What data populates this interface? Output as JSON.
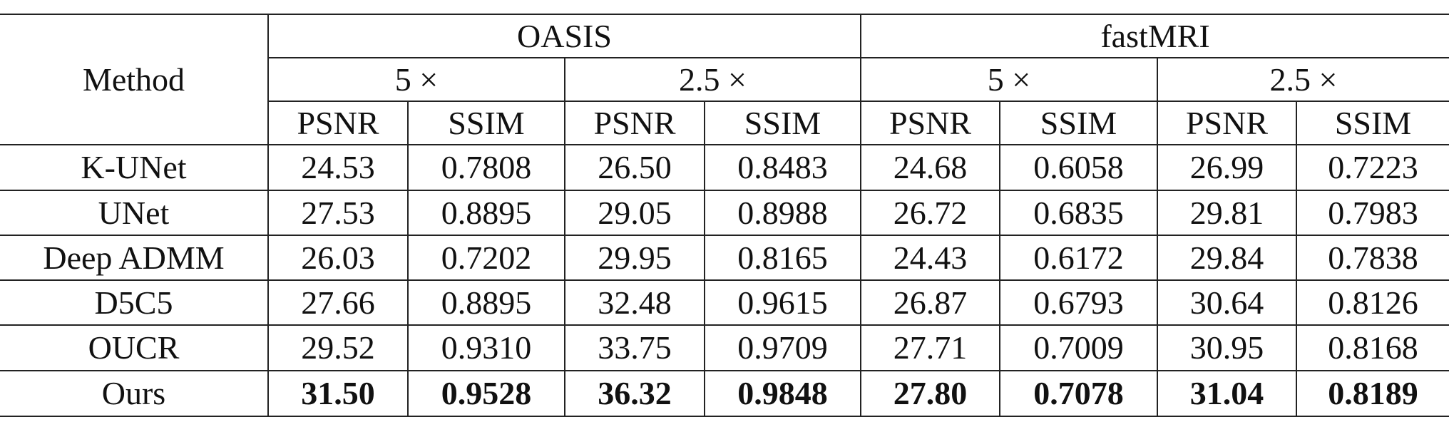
{
  "header": {
    "method": "Method",
    "datasets": [
      "OASIS",
      "fastMRI"
    ],
    "rates": [
      "5 ×",
      "2.5 ×",
      "5 ×",
      "2.5 ×"
    ],
    "metrics": [
      "PSNR",
      "SSIM",
      "PSNR",
      "SSIM",
      "PSNR",
      "SSIM",
      "PSNR",
      "SSIM"
    ]
  },
  "rows": [
    [
      "K-UNet",
      "24.53",
      "0.7808",
      "26.50",
      "0.8483",
      "24.68",
      "0.6058",
      "26.99",
      "0.7223"
    ],
    [
      "UNet",
      "27.53",
      "0.8895",
      "29.05",
      "0.8988",
      "26.72",
      "0.6835",
      "29.81",
      "0.7983"
    ],
    [
      "Deep ADMM",
      "26.03",
      "0.7202",
      "29.95",
      "0.8165",
      "24.43",
      "0.6172",
      "29.84",
      "0.7838"
    ],
    [
      "D5C5",
      "27.66",
      "0.8895",
      "32.48",
      "0.9615",
      "26.87",
      "0.6793",
      "30.64",
      "0.8126"
    ],
    [
      "OUCR",
      "29.52",
      "0.9310",
      "33.75",
      "0.9709",
      "27.71",
      "0.7009",
      "30.95",
      "0.8168"
    ],
    [
      "Ours",
      "31.50",
      "0.9528",
      "36.32",
      "0.9848",
      "27.80",
      "0.7078",
      "31.04",
      "0.8189"
    ]
  ]
}
